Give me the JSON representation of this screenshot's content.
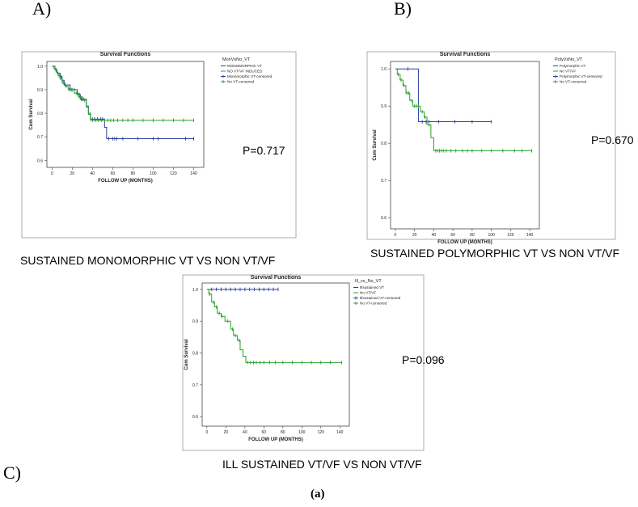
{
  "panels": {
    "a": "A)",
    "b": "B)",
    "c": "C)"
  },
  "figure_label": "(a)",
  "colors": {
    "group1": "#2a3f9e",
    "group2": "#2aa02a",
    "frame": "#444444"
  },
  "chart_data": [
    {
      "id": "A",
      "type": "line",
      "subtype": "kaplan-meier",
      "title": "Survival Functions",
      "xlabel": "FOLLOW UP (MONTHS)",
      "ylabel": "Cum Survival",
      "xlim": [
        -5,
        150
      ],
      "ylim": [
        0.57,
        1.02
      ],
      "xticks": [
        0,
        20,
        40,
        60,
        80,
        100,
        120,
        140
      ],
      "yticks": [
        0.6,
        0.7,
        0.8,
        0.9,
        1.0
      ],
      "ytick_labels": [
        "0.6",
        "0.7",
        "0.8",
        "0.9",
        "1.0"
      ],
      "legend_title": "MonVsNo_VT",
      "legend": [
        "MONOMORPHIC VT",
        "NO VT/VF INDUCED",
        "Monomorphic VT-censored",
        "No VT-censored"
      ],
      "p_value": "P=0.717",
      "caption": "SUSTAINED MONOMORPHIC VT VS NON VT/VF",
      "series": [
        {
          "name": "MONOMORPHIC VT",
          "color": "#2a3f9e",
          "steps": [
            [
              0,
              1.0
            ],
            [
              3,
              0.985
            ],
            [
              5,
              0.97
            ],
            [
              8,
              0.955
            ],
            [
              10,
              0.94
            ],
            [
              12,
              0.92
            ],
            [
              18,
              0.9
            ],
            [
              25,
              0.88
            ],
            [
              28,
              0.86
            ],
            [
              34,
              0.83
            ],
            [
              36,
              0.8
            ],
            [
              38,
              0.775
            ],
            [
              52,
              0.74
            ],
            [
              54,
              0.692
            ],
            [
              140,
              0.692
            ]
          ],
          "censored": [
            4,
            9,
            13,
            19,
            22,
            27,
            29,
            31,
            40,
            42,
            45,
            48,
            50,
            56,
            60,
            62,
            64,
            70,
            85,
            100,
            105,
            132,
            140
          ]
        },
        {
          "name": "NO VT/VF INDUCED",
          "color": "#2aa02a",
          "steps": [
            [
              0,
              1.0
            ],
            [
              2,
              0.99
            ],
            [
              4,
              0.975
            ],
            [
              6,
              0.96
            ],
            [
              8,
              0.945
            ],
            [
              10,
              0.93
            ],
            [
              13,
              0.915
            ],
            [
              16,
              0.9
            ],
            [
              22,
              0.885
            ],
            [
              26,
              0.87
            ],
            [
              30,
              0.855
            ],
            [
              34,
              0.825
            ],
            [
              36,
              0.795
            ],
            [
              38,
              0.77
            ],
            [
              140,
              0.77
            ]
          ],
          "censored": [
            3,
            5,
            7,
            11,
            14,
            17,
            20,
            24,
            27,
            32,
            40,
            43,
            46,
            49,
            52,
            55,
            58,
            61,
            65,
            70,
            75,
            80,
            90,
            100,
            110,
            120,
            130,
            140
          ]
        }
      ]
    },
    {
      "id": "B",
      "type": "line",
      "subtype": "kaplan-meier",
      "title": "Survival Functions",
      "xlabel": "FOLLOW UP (MONTHS)",
      "ylabel": "Cum Survival",
      "xlim": [
        -5,
        150
      ],
      "ylim": [
        0.57,
        1.02
      ],
      "xticks": [
        0,
        20,
        40,
        60,
        80,
        100,
        120,
        140
      ],
      "yticks": [
        0.6,
        0.7,
        0.8,
        0.9,
        1.0
      ],
      "ytick_labels": [
        "0.6",
        "0.7",
        "0.8",
        "0.9",
        "1.0"
      ],
      "legend_title": "PolyVsNo_VT",
      "legend": [
        "Polymorphic VT",
        "No VT/VF",
        "Polymorphic VT-censored",
        "No VT-censored"
      ],
      "p_value": "P=0.670",
      "caption": "SUSTAINED POLYMORPHIC VT VS NON VT/VF",
      "series": [
        {
          "name": "Polymorphic VT",
          "color": "#2a3f9e",
          "steps": [
            [
              0,
              1.0
            ],
            [
              24,
              0.858
            ],
            [
              100,
              0.858
            ]
          ],
          "censored": [
            13,
            28,
            32,
            35,
            45,
            62,
            80,
            100
          ]
        },
        {
          "name": "No VT/VF",
          "color": "#2aa02a",
          "steps": [
            [
              0,
              1.0
            ],
            [
              2,
              0.985
            ],
            [
              5,
              0.97
            ],
            [
              8,
              0.955
            ],
            [
              11,
              0.935
            ],
            [
              15,
              0.915
            ],
            [
              18,
              0.9
            ],
            [
              26,
              0.885
            ],
            [
              30,
              0.87
            ],
            [
              33,
              0.85
            ],
            [
              37,
              0.815
            ],
            [
              40,
              0.78
            ],
            [
              142,
              0.78
            ]
          ],
          "censored": [
            3,
            6,
            9,
            12,
            14,
            17,
            20,
            22,
            24,
            28,
            31,
            35,
            42,
            44,
            46,
            48,
            50,
            53,
            58,
            63,
            70,
            75,
            80,
            90,
            100,
            112,
            124,
            132,
            142
          ]
        }
      ]
    },
    {
      "id": "C",
      "type": "line",
      "subtype": "kaplan-meier",
      "title": "Survival Functions",
      "xlabel": "FOLLOW UP (MONTHS)",
      "ylabel": "Cum Survival",
      "xlim": [
        -5,
        150
      ],
      "ylim": [
        0.57,
        1.02
      ],
      "xticks": [
        0,
        20,
        40,
        60,
        80,
        100,
        120,
        140
      ],
      "yticks": [
        0.6,
        0.7,
        0.8,
        0.9,
        1.0
      ],
      "ytick_labels": [
        "0.6",
        "0.7",
        "0.8",
        "0.9",
        "1.0"
      ],
      "legend_title": "Ill_vs_No_VT",
      "legend": [
        "Illsustained VT",
        "No VT/VF",
        "Illsustained VT-censored",
        "No VT-censored"
      ],
      "p_value": "P=0.096",
      "caption": "ILL SUSTAINED VT/VF VS NON VT/VF",
      "series": [
        {
          "name": "Illsustained VT",
          "color": "#2a3f9e",
          "steps": [
            [
              0,
              1.0
            ],
            [
              75,
              1.0
            ]
          ],
          "censored": [
            5,
            10,
            15,
            20,
            25,
            30,
            35,
            40,
            45,
            50,
            55,
            60,
            65,
            70,
            75
          ]
        },
        {
          "name": "No VT/VF",
          "color": "#2aa02a",
          "steps": [
            [
              0,
              1.0
            ],
            [
              2,
              0.985
            ],
            [
              5,
              0.96
            ],
            [
              8,
              0.945
            ],
            [
              11,
              0.925
            ],
            [
              15,
              0.915
            ],
            [
              19,
              0.9
            ],
            [
              25,
              0.875
            ],
            [
              28,
              0.855
            ],
            [
              32,
              0.84
            ],
            [
              35,
              0.81
            ],
            [
              38,
              0.79
            ],
            [
              41,
              0.77
            ],
            [
              142,
              0.77
            ]
          ],
          "censored": [
            3,
            7,
            10,
            13,
            16,
            22,
            27,
            30,
            34,
            43,
            46,
            49,
            52,
            56,
            60,
            66,
            72,
            80,
            90,
            100,
            110,
            120,
            130,
            142
          ]
        }
      ]
    }
  ]
}
